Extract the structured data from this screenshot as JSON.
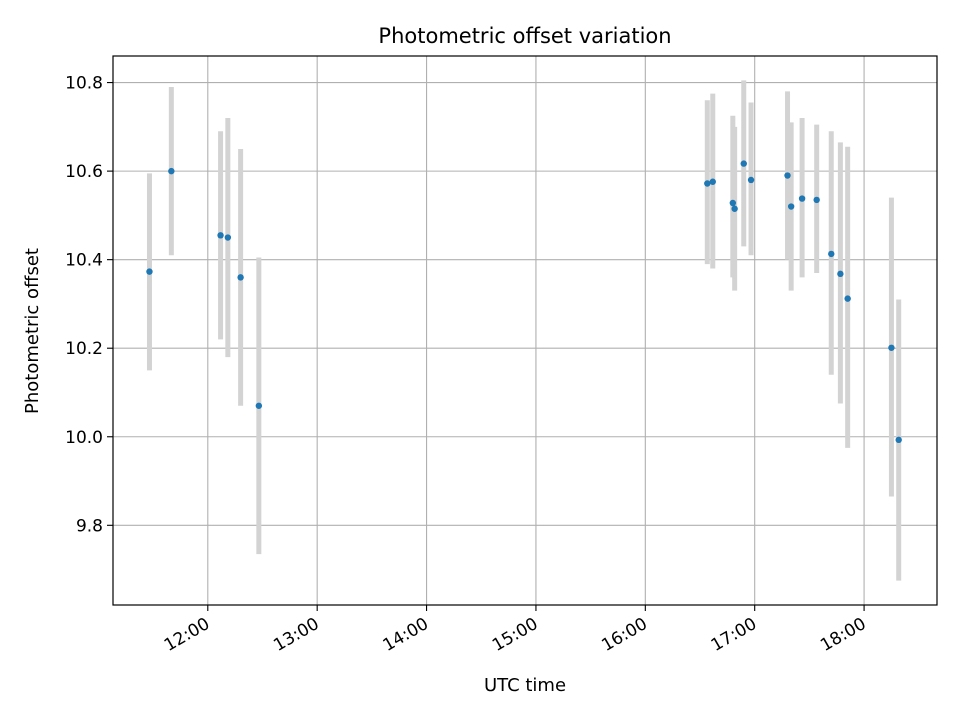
{
  "chart_data": {
    "type": "scatter",
    "title": "Photometric offset variation",
    "xlabel": "UTC time",
    "ylabel": "Photometric offset",
    "x_axis": "time",
    "xlim": [
      "11:08",
      "18:40"
    ],
    "ylim": [
      9.62,
      10.86
    ],
    "xticks": [
      "12:00",
      "13:00",
      "14:00",
      "15:00",
      "16:00",
      "17:00",
      "18:00"
    ],
    "yticks": [
      "9.8",
      "10.0",
      "10.2",
      "10.4",
      "10.6",
      "10.8"
    ],
    "grid": true,
    "colors": {
      "point": "#1f77b4",
      "errorbar": "#d3d3d3",
      "grid": "#b0b0b0",
      "axes": "#000000"
    },
    "points": [
      {
        "x": "11:28",
        "y": 10.373,
        "low": 10.15,
        "high": 10.595
      },
      {
        "x": "11:40",
        "y": 10.6,
        "low": 10.41,
        "high": 10.79
      },
      {
        "x": "12:07",
        "y": 10.455,
        "low": 10.22,
        "high": 10.69
      },
      {
        "x": "12:11",
        "y": 10.45,
        "low": 10.18,
        "high": 10.72
      },
      {
        "x": "12:18",
        "y": 10.36,
        "low": 10.07,
        "high": 10.65
      },
      {
        "x": "12:28",
        "y": 10.07,
        "low": 9.735,
        "high": 10.405
      },
      {
        "x": "16:34",
        "y": 10.572,
        "low": 10.39,
        "high": 10.76
      },
      {
        "x": "16:37",
        "y": 10.576,
        "low": 10.38,
        "high": 10.775
      },
      {
        "x": "16:48",
        "y": 10.528,
        "low": 10.36,
        "high": 10.725
      },
      {
        "x": "16:49",
        "y": 10.515,
        "low": 10.33,
        "high": 10.7
      },
      {
        "x": "16:54",
        "y": 10.617,
        "low": 10.43,
        "high": 10.805
      },
      {
        "x": "16:58",
        "y": 10.58,
        "low": 10.41,
        "high": 10.755
      },
      {
        "x": "17:18",
        "y": 10.59,
        "low": 10.4,
        "high": 10.78
      },
      {
        "x": "17:20",
        "y": 10.52,
        "low": 10.33,
        "high": 10.71
      },
      {
        "x": "17:26",
        "y": 10.538,
        "low": 10.36,
        "high": 10.72
      },
      {
        "x": "17:34",
        "y": 10.535,
        "low": 10.37,
        "high": 10.705
      },
      {
        "x": "17:42",
        "y": 10.413,
        "low": 10.14,
        "high": 10.69
      },
      {
        "x": "17:47",
        "y": 10.368,
        "low": 10.075,
        "high": 10.665
      },
      {
        "x": "17:51",
        "y": 10.312,
        "low": 9.975,
        "high": 10.655
      },
      {
        "x": "18:15",
        "y": 10.201,
        "low": 9.865,
        "high": 10.54
      },
      {
        "x": "18:19",
        "y": 9.993,
        "low": 9.675,
        "high": 10.31
      }
    ]
  }
}
